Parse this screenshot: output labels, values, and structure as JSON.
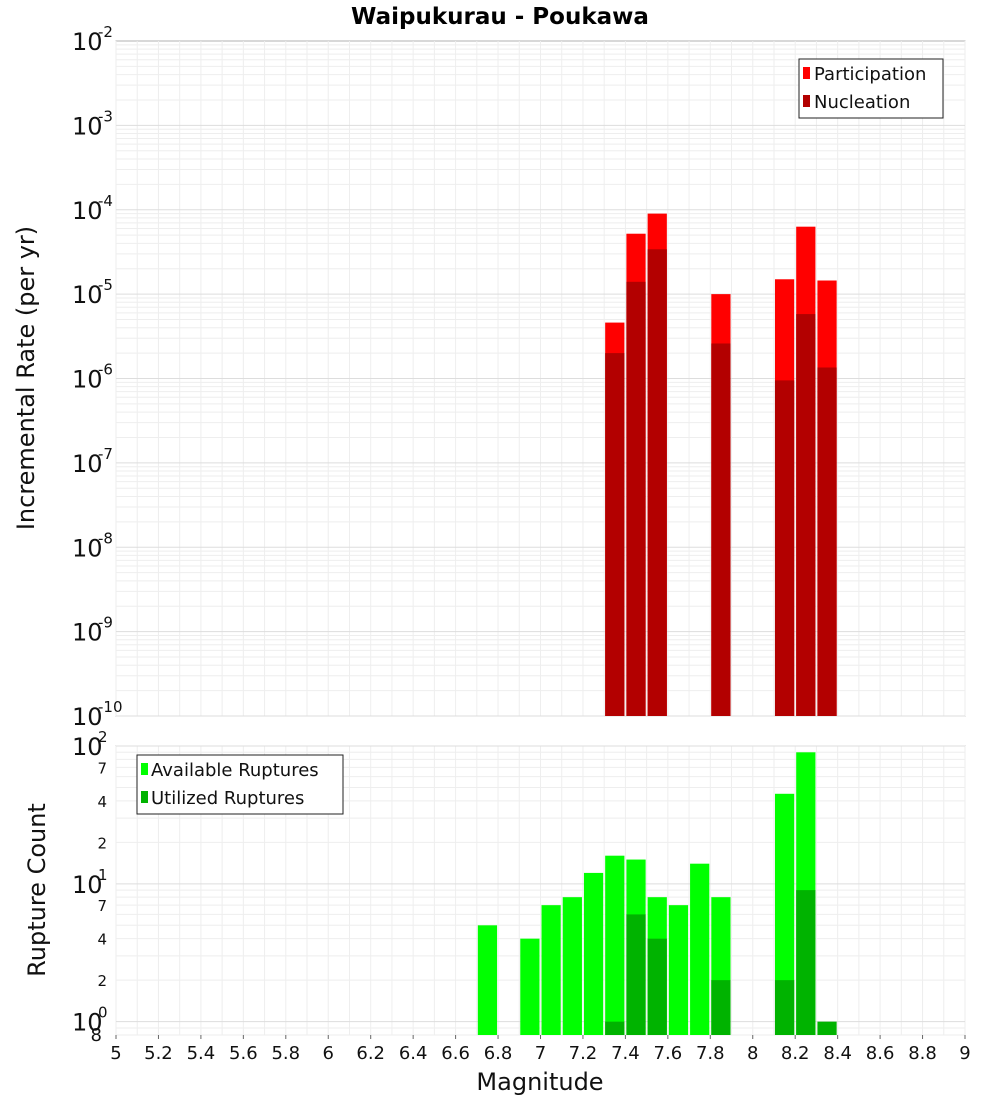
{
  "chart_data": [
    {
      "type": "bar",
      "title": "Waipukurau - Poukawa",
      "ylabel": "Incremental Rate (per yr)",
      "xlabel": "",
      "yscale": "log",
      "ylim": [
        1e-10,
        0.01
      ],
      "xlim": [
        5,
        9
      ],
      "y_tick_bases": [
        "10",
        "10",
        "10",
        "10",
        "10",
        "10",
        "10",
        "10",
        "10"
      ],
      "y_tick_exponents": [
        "-10",
        "-9",
        "-8",
        "-7",
        "-6",
        "-5",
        "-4",
        "-3",
        "-2"
      ],
      "grid": true,
      "legend_position": "top-right",
      "x": [
        7.35,
        7.45,
        7.55,
        7.85,
        8.15,
        8.25,
        8.35
      ],
      "series": [
        {
          "name": "Participation",
          "color": "#ff0000",
          "values": [
            4.6e-06,
            5.2e-05,
            9e-05,
            1e-05,
            1.5e-05,
            6.3e-05,
            1.45e-05
          ]
        },
        {
          "name": "Nucleation",
          "color": "#b30000",
          "values": [
            2e-06,
            1.4e-05,
            3.4e-05,
            2.6e-06,
            9.5e-07,
            5.8e-06,
            1.35e-06
          ]
        }
      ]
    },
    {
      "type": "bar",
      "title": "",
      "ylabel": "Rupture Count",
      "xlabel": "Magnitude",
      "yscale": "log",
      "ylim": [
        0.8,
        100
      ],
      "xlim": [
        5,
        9
      ],
      "x_ticks": [
        "5",
        "5.2",
        "5.4",
        "5.6",
        "5.8",
        "6",
        "6.2",
        "6.4",
        "6.6",
        "6.8",
        "7",
        "7.2",
        "7.4",
        "7.6",
        "7.8",
        "8",
        "8.2",
        "8.4",
        "8.6",
        "8.8",
        "9"
      ],
      "y_tick_labels": {
        "major": [
          {
            "value": 1,
            "base": "10",
            "exp": "0"
          },
          {
            "value": 10,
            "base": "10",
            "exp": "1"
          },
          {
            "value": 100,
            "base": "10",
            "exp": "2"
          }
        ],
        "minor": [
          {
            "value": 0.8,
            "label": "8"
          },
          {
            "value": 2,
            "label": "2"
          },
          {
            "value": 4,
            "label": "4"
          },
          {
            "value": 7,
            "label": "7"
          },
          {
            "value": 20,
            "label": "2"
          },
          {
            "value": 40,
            "label": "4"
          },
          {
            "value": 70,
            "label": "7"
          }
        ]
      },
      "grid": true,
      "legend_position": "top-left",
      "x": [
        6.75,
        6.95,
        7.05,
        7.15,
        7.25,
        7.35,
        7.45,
        7.55,
        7.65,
        7.75,
        7.85,
        8.15,
        8.25,
        8.35
      ],
      "series": [
        {
          "name": "Available Ruptures",
          "color": "#00ff00",
          "values": [
            5,
            4,
            7,
            8,
            12,
            16,
            15,
            8,
            7,
            14,
            8,
            45,
            90,
            0
          ]
        },
        {
          "name": "Utilized Ruptures",
          "color": "#00b300",
          "values": [
            0,
            0,
            0,
            0,
            0,
            1,
            6,
            4,
            0,
            0,
            2,
            2,
            9,
            1
          ]
        }
      ]
    }
  ]
}
